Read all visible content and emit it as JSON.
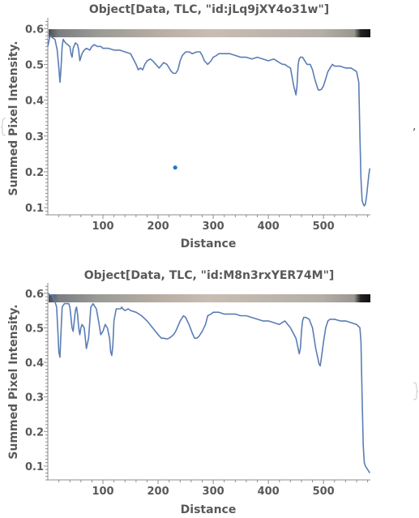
{
  "colors": {
    "line": "#5b7db5",
    "marker": "#1f77c9",
    "axis": "#8c8c8c",
    "text": "#595959"
  },
  "separator": ",",
  "chart_data": [
    {
      "type": "line",
      "title": "Object[Data, TLC, \"id:jLq9jXY4o31w\"]",
      "xlabel": "Distance",
      "ylabel": "Summed Pixel Intensity.",
      "xlim": [
        0,
        585
      ],
      "ylim": [
        0.08,
        0.63
      ],
      "x_ticks": [
        100,
        200,
        300,
        400,
        500
      ],
      "y_ticks": [
        0.1,
        0.2,
        0.3,
        0.4,
        0.5,
        0.6
      ],
      "y_tick_labels": [
        "0.1",
        "0.2",
        "0.3",
        "0.4",
        "0.5",
        "0.6"
      ],
      "grid": false,
      "legend": "none",
      "band_image": "lane-strip",
      "series": [
        {
          "x": [
            0,
            4,
            8,
            13,
            17,
            20,
            22,
            24,
            26,
            28,
            32,
            36,
            40,
            42,
            44,
            46,
            50,
            54,
            56,
            58,
            62,
            66,
            70,
            76,
            80,
            84,
            90,
            96,
            100,
            110,
            120,
            130,
            140,
            150,
            155,
            160,
            164,
            168,
            172,
            176,
            180,
            186,
            190,
            196,
            202,
            210,
            216,
            220,
            224,
            228,
            232,
            236,
            240,
            244,
            250,
            256,
            262,
            270,
            276,
            280,
            284,
            290,
            296,
            300,
            306,
            310,
            320,
            330,
            340,
            350,
            360,
            370,
            380,
            390,
            400,
            410,
            420,
            426,
            430,
            434,
            440,
            446,
            450,
            452,
            454,
            456,
            458,
            462,
            470,
            476,
            480,
            484,
            488,
            490,
            492,
            496,
            500,
            504,
            508,
            512,
            516,
            520,
            530,
            540,
            550,
            560,
            564,
            566,
            568,
            570,
            572,
            574,
            576,
            578,
            580,
            582,
            584
          ],
          "values": [
            0.55,
            0.58,
            0.575,
            0.57,
            0.54,
            0.49,
            0.45,
            0.49,
            0.55,
            0.57,
            0.56,
            0.555,
            0.55,
            0.53,
            0.52,
            0.545,
            0.56,
            0.555,
            0.54,
            0.51,
            0.53,
            0.54,
            0.545,
            0.54,
            0.55,
            0.555,
            0.55,
            0.55,
            0.545,
            0.545,
            0.54,
            0.54,
            0.535,
            0.53,
            0.515,
            0.5,
            0.485,
            0.49,
            0.485,
            0.5,
            0.51,
            0.515,
            0.51,
            0.5,
            0.49,
            0.505,
            0.5,
            0.49,
            0.48,
            0.475,
            0.475,
            0.485,
            0.51,
            0.525,
            0.535,
            0.535,
            0.53,
            0.535,
            0.535,
            0.525,
            0.51,
            0.5,
            0.51,
            0.52,
            0.525,
            0.53,
            0.53,
            0.53,
            0.525,
            0.52,
            0.52,
            0.515,
            0.52,
            0.515,
            0.51,
            0.515,
            0.505,
            0.5,
            0.5,
            0.495,
            0.49,
            0.44,
            0.415,
            0.44,
            0.5,
            0.515,
            0.52,
            0.52,
            0.5,
            0.5,
            0.485,
            0.46,
            0.44,
            0.43,
            0.428,
            0.43,
            0.44,
            0.46,
            0.48,
            0.49,
            0.5,
            0.495,
            0.495,
            0.49,
            0.49,
            0.48,
            0.45,
            0.3,
            0.18,
            0.12,
            0.11,
            0.105,
            0.11,
            0.13,
            0.16,
            0.19,
            0.21
          ]
        }
      ],
      "markers": [
        {
          "x": 231,
          "y": 0.212
        }
      ]
    },
    {
      "type": "line",
      "title": "Object[Data, TLC, \"id:M8n3rxYER74M\"]",
      "xlabel": "Distance",
      "ylabel": "Summed Pixel Intensity.",
      "xlim": [
        0,
        585
      ],
      "ylim": [
        0.06,
        0.63
      ],
      "x_ticks": [
        100,
        200,
        300,
        400,
        500
      ],
      "y_ticks": [
        0.1,
        0.2,
        0.3,
        0.4,
        0.5,
        0.6
      ],
      "y_tick_labels": [
        "0.1",
        "0.2",
        "0.3",
        "0.4",
        "0.5",
        "0.6"
      ],
      "grid": false,
      "legend": "none",
      "band_image": "lane-strip",
      "series": [
        {
          "x": [
            0,
            4,
            8,
            12,
            16,
            18,
            20,
            22,
            24,
            26,
            30,
            34,
            38,
            40,
            42,
            44,
            46,
            50,
            52,
            54,
            56,
            58,
            60,
            62,
            66,
            70,
            74,
            78,
            82,
            84,
            88,
            92,
            96,
            100,
            104,
            108,
            112,
            114,
            116,
            118,
            120,
            124,
            128,
            130,
            132,
            134,
            136,
            140,
            146,
            150,
            160,
            170,
            180,
            190,
            200,
            206,
            210,
            216,
            220,
            224,
            228,
            232,
            236,
            240,
            246,
            250,
            256,
            262,
            266,
            270,
            274,
            280,
            286,
            290,
            296,
            300,
            306,
            310,
            320,
            330,
            340,
            350,
            360,
            370,
            380,
            390,
            400,
            410,
            420,
            430,
            440,
            450,
            454,
            456,
            458,
            460,
            462,
            464,
            468,
            474,
            480,
            486,
            490,
            492,
            494,
            496,
            500,
            504,
            508,
            512,
            520,
            530,
            540,
            550,
            560,
            566,
            568,
            570,
            572,
            574,
            576,
            578,
            580,
            582,
            584
          ],
          "values": [
            0.6,
            0.595,
            0.595,
            0.58,
            0.56,
            0.5,
            0.43,
            0.415,
            0.49,
            0.56,
            0.57,
            0.57,
            0.57,
            0.56,
            0.53,
            0.5,
            0.49,
            0.55,
            0.56,
            0.54,
            0.5,
            0.48,
            0.5,
            0.51,
            0.5,
            0.44,
            0.47,
            0.56,
            0.57,
            0.565,
            0.555,
            0.52,
            0.48,
            0.49,
            0.51,
            0.5,
            0.47,
            0.43,
            0.42,
            0.45,
            0.52,
            0.555,
            0.555,
            0.555,
            0.555,
            0.56,
            0.555,
            0.55,
            0.555,
            0.55,
            0.545,
            0.535,
            0.52,
            0.5,
            0.48,
            0.47,
            0.47,
            0.468,
            0.47,
            0.475,
            0.48,
            0.49,
            0.505,
            0.52,
            0.535,
            0.53,
            0.51,
            0.485,
            0.47,
            0.47,
            0.475,
            0.49,
            0.51,
            0.535,
            0.54,
            0.545,
            0.545,
            0.545,
            0.54,
            0.54,
            0.54,
            0.535,
            0.535,
            0.53,
            0.525,
            0.52,
            0.52,
            0.515,
            0.51,
            0.52,
            0.5,
            0.47,
            0.44,
            0.425,
            0.44,
            0.49,
            0.52,
            0.53,
            0.53,
            0.525,
            0.5,
            0.44,
            0.41,
            0.395,
            0.39,
            0.41,
            0.46,
            0.5,
            0.52,
            0.525,
            0.525,
            0.52,
            0.52,
            0.515,
            0.51,
            0.5,
            0.46,
            0.3,
            0.16,
            0.11,
            0.1,
            0.095,
            0.09,
            0.085,
            0.08
          ]
        }
      ]
    }
  ]
}
